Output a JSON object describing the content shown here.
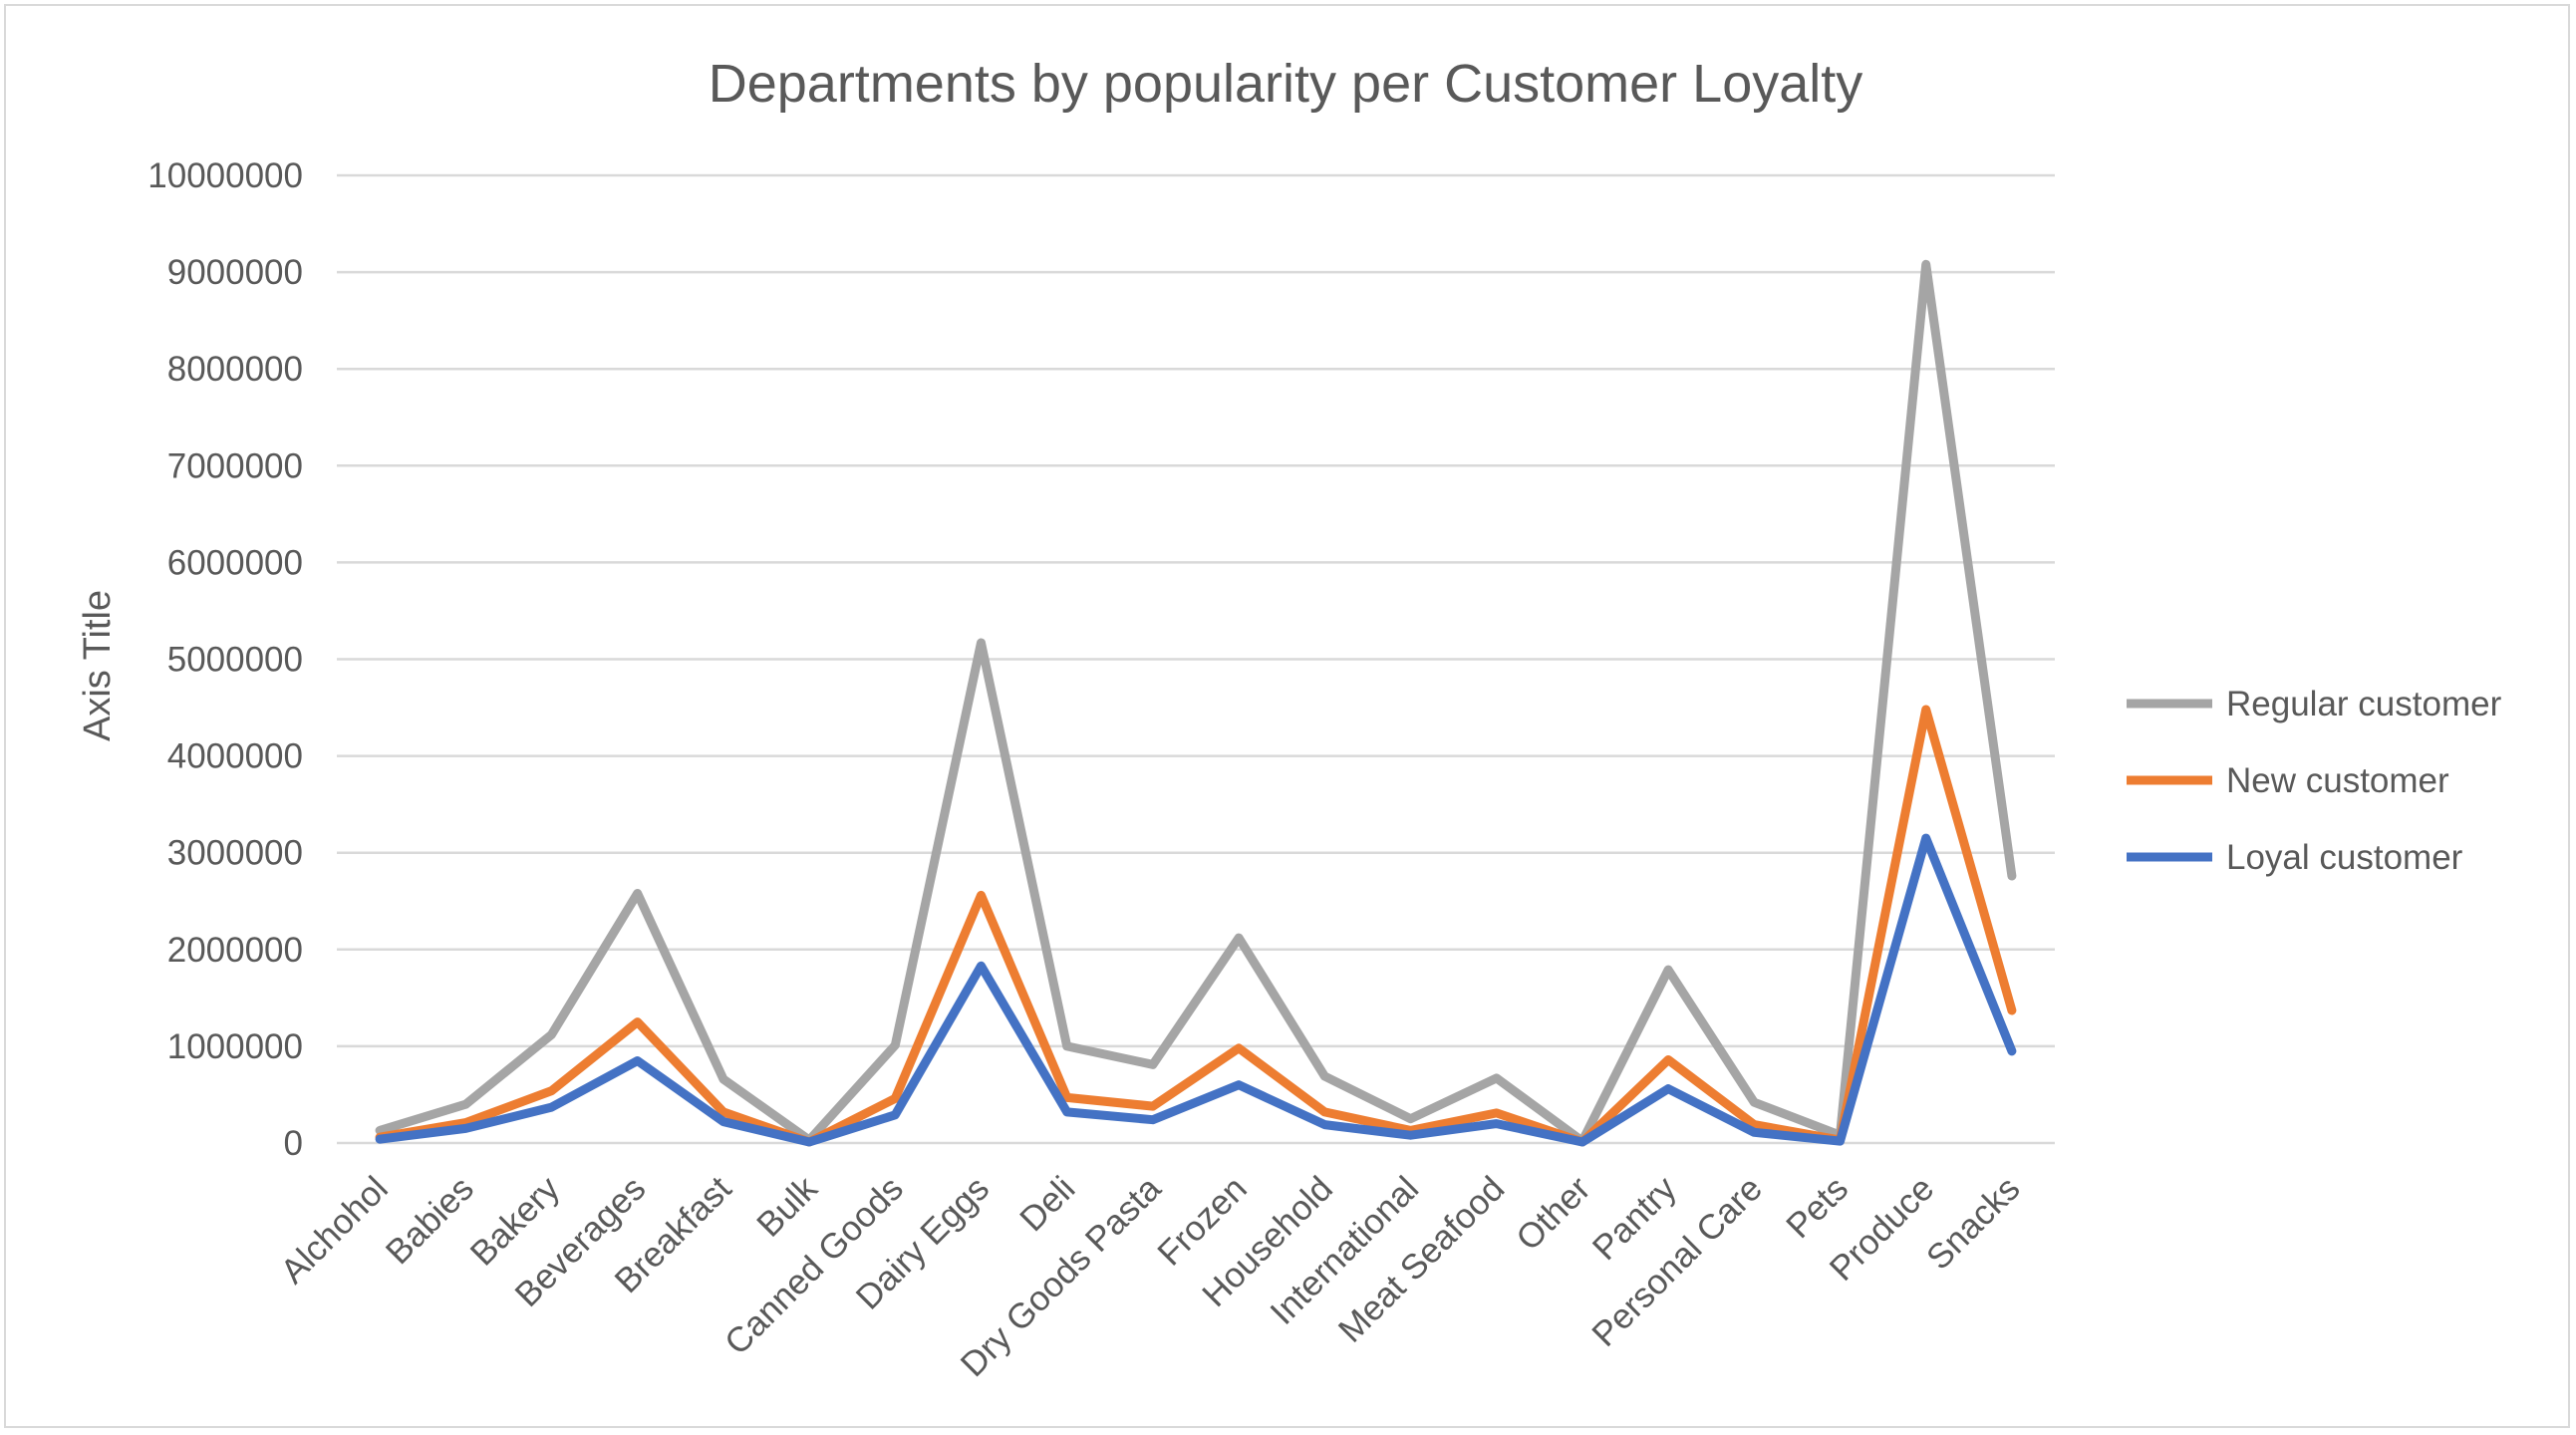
{
  "colors": {
    "regular": "#A5A5A5",
    "new": "#ED7D31",
    "loyal": "#4472C4",
    "grid": "#D9D9D9",
    "text": "#595959"
  },
  "chart_data": {
    "type": "line",
    "title": "Departments by popularity per Customer Loyalty",
    "xlabel": "",
    "ylabel": "Axis Title",
    "ylim": [
      0,
      10000000
    ],
    "yticks": [
      "0",
      "1000000",
      "2000000",
      "3000000",
      "4000000",
      "5000000",
      "6000000",
      "7000000",
      "8000000",
      "9000000",
      "10000000"
    ],
    "grid": true,
    "legend_position": "right",
    "categories": [
      "Alchohol",
      "Babies",
      "Bakery",
      "Beverages",
      "Breakfast",
      "Bulk",
      "Canned Goods",
      "Dairy Eggs",
      "Deli",
      "Dry Goods Pasta",
      "Frozen",
      "Household",
      "International",
      "Meat Seafood",
      "Other",
      "Pantry",
      "Personal Care",
      "Pets",
      "Produce",
      "Snacks"
    ],
    "series": [
      {
        "name": "Regular customer",
        "color": "#A5A5A5",
        "values": [
          130000,
          400000,
          1120000,
          2580000,
          660000,
          30000,
          1010000,
          5170000,
          1000000,
          810000,
          2120000,
          690000,
          250000,
          670000,
          20000,
          1790000,
          420000,
          80000,
          9080000,
          2760000
        ]
      },
      {
        "name": "New customer",
        "color": "#ED7D31",
        "values": [
          60000,
          210000,
          540000,
          1250000,
          320000,
          10000,
          460000,
          2560000,
          470000,
          380000,
          980000,
          320000,
          130000,
          310000,
          10000,
          860000,
          190000,
          30000,
          4480000,
          1370000
        ]
      },
      {
        "name": "Loyal customer",
        "color": "#4472C4",
        "values": [
          40000,
          150000,
          370000,
          850000,
          220000,
          10000,
          290000,
          1830000,
          320000,
          240000,
          600000,
          190000,
          80000,
          200000,
          10000,
          560000,
          110000,
          20000,
          3150000,
          950000
        ]
      }
    ]
  }
}
